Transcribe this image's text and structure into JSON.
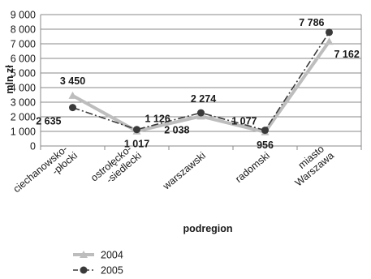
{
  "chart_data": {
    "type": "line",
    "title": "",
    "xlabel": "podregion",
    "ylabel": "mln zł",
    "ylim": [
      0,
      9000
    ],
    "yticks": [
      0,
      1000,
      2000,
      3000,
      4000,
      5000,
      6000,
      7000,
      8000,
      9000
    ],
    "ytick_labels": [
      "0",
      "1 000",
      "2 000",
      "3 000",
      "4 000",
      "5 000",
      "6 000",
      "7 000",
      "8 000",
      "9 000"
    ],
    "grid": "horizontal",
    "legend_position": "bottom",
    "categories": [
      [
        "ciechanowsko-",
        "-płocki"
      ],
      [
        "ostrołęcko-",
        "-siedlecki"
      ],
      [
        "warszawski"
      ],
      [
        "radomski"
      ],
      [
        "miasto",
        "Warszawa"
      ]
    ],
    "series": [
      {
        "name": "2004",
        "values": [
          3450,
          1017,
          2038,
          956,
          7162
        ],
        "labels": [
          "3 450",
          "1 017",
          "2 038",
          "956",
          "7 162"
        ],
        "color": "#bdbdbd",
        "line_style": "solid",
        "marker": "triangle"
      },
      {
        "name": "2005",
        "values": [
          2635,
          1126,
          2274,
          1077,
          7786
        ],
        "labels": [
          "2 635",
          "1 126",
          "2 274",
          "1 077",
          "7 786"
        ],
        "color": "#3a3a3a",
        "line_style": "dash-dot",
        "marker": "circle"
      }
    ]
  }
}
